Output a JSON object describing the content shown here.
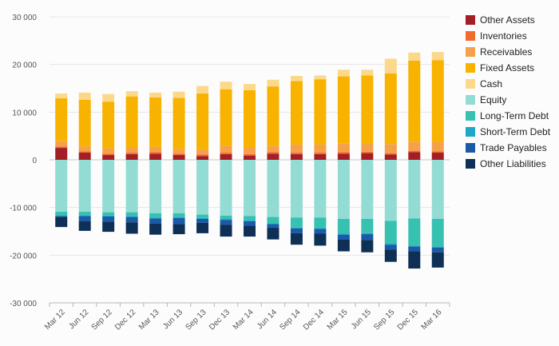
{
  "chart_data": {
    "type": "bar",
    "stacked": true,
    "categories": [
      "Mar 12",
      "Jun 12",
      "Sep 12",
      "Dec 12",
      "Mar 13",
      "Jun 13",
      "Sep 13",
      "Dec 13",
      "Mar 14",
      "Jun 14",
      "Sep 14",
      "Dec 14",
      "Mar 15",
      "Jun 15",
      "Sep 15",
      "Dec 15",
      "Mar 16"
    ],
    "ylim": [
      -30000,
      30000
    ],
    "yticks": [
      30000,
      20000,
      10000,
      0,
      -10000,
      -20000,
      -30000
    ],
    "ytick_labels": [
      "30 000",
      "20 000",
      "10 000",
      "0",
      "-10 000",
      "-20 000",
      "-30 000"
    ],
    "grid": true,
    "legend_position": "right",
    "series": [
      {
        "name": "Other Assets",
        "color": "#a41e25",
        "values": [
          2500,
          1500,
          1000,
          1200,
          1300,
          1000,
          800,
          1200,
          900,
          1300,
          1200,
          1200,
          1300,
          1400,
          1100,
          1600,
          1500
        ]
      },
      {
        "name": "Inventories",
        "color": "#f26a2e",
        "values": [
          300,
          300,
          300,
          300,
          300,
          300,
          300,
          300,
          300,
          300,
          300,
          300,
          300,
          300,
          300,
          300,
          300
        ]
      },
      {
        "name": "Receivables",
        "color": "#f5a04a",
        "values": [
          1100,
          1000,
          1100,
          1100,
          1100,
          1000,
          1100,
          1400,
          1400,
          1300,
          1700,
          1700,
          1800,
          1800,
          1900,
          1900,
          1900
        ]
      },
      {
        "name": "Fixed Assets",
        "color": "#f8b200",
        "values": [
          9000,
          9800,
          9800,
          10700,
          10400,
          10700,
          11700,
          11900,
          12000,
          12500,
          13300,
          13700,
          14100,
          14200,
          14800,
          17000,
          17200
        ]
      },
      {
        "name": "Cash",
        "color": "#fcd98a",
        "values": [
          1000,
          1500,
          1600,
          1100,
          1000,
          1300,
          1600,
          1600,
          1300,
          1400,
          1100,
          800,
          1400,
          1200,
          3100,
          1700,
          1700
        ]
      },
      {
        "name": "Equity",
        "color": "#93dcd4",
        "values": [
          -10900,
          -10900,
          -11000,
          -11000,
          -11200,
          -11200,
          -11500,
          -11700,
          -11800,
          -12000,
          -12100,
          -12100,
          -12400,
          -12400,
          -12800,
          -12300,
          -12400
        ]
      },
      {
        "name": "Long-Term Debt",
        "color": "#36c1b1",
        "values": [
          -700,
          -700,
          -700,
          -800,
          -900,
          -800,
          -700,
          -700,
          -900,
          -1300,
          -2100,
          -2200,
          -3100,
          -3000,
          -4800,
          -5700,
          -5800
        ]
      },
      {
        "name": "Short-Term Debt",
        "color": "#1ea7c9",
        "values": [
          -200,
          -200,
          -200,
          -200,
          -200,
          -200,
          -200,
          -200,
          -200,
          -200,
          -200,
          -200,
          -200,
          -200,
          -200,
          -200,
          -200
        ]
      },
      {
        "name": "Trade Payables",
        "color": "#1a5aa6",
        "values": [
          -200,
          -1100,
          -1100,
          -1100,
          -1100,
          -1300,
          -800,
          -1000,
          -900,
          -700,
          -1000,
          -1000,
          -1000,
          -1200,
          -1000,
          -1000,
          -1000
        ]
      },
      {
        "name": "Other Liabilities",
        "color": "#0e2f56",
        "values": [
          -2100,
          -2000,
          -2100,
          -2400,
          -2300,
          -2100,
          -2200,
          -2500,
          -2300,
          -2500,
          -2400,
          -2500,
          -2500,
          -2600,
          -2600,
          -3600,
          -3200
        ]
      }
    ]
  }
}
